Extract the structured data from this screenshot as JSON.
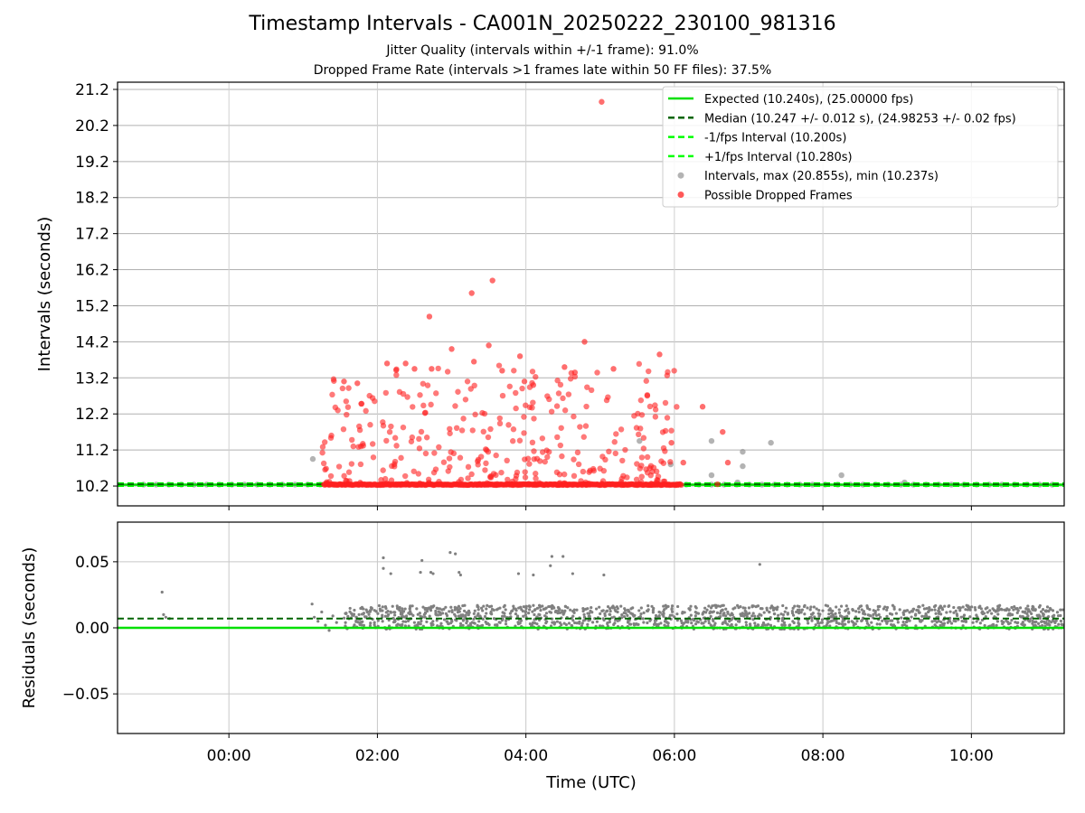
{
  "chart_data": [
    {
      "type": "scatter",
      "title": "Timestamp Intervals - CA001N_20250222_230100_981316",
      "subtitle_lines": [
        "Jitter Quality (intervals within +/-1 frame): 91.0%",
        "Dropped Frame Rate (intervals >1 frames late within 50 FF files): 37.5%"
      ],
      "xlabel": "",
      "ylabel": "Intervals (seconds)",
      "xlim_hours": [
        -1.5,
        11.25
      ],
      "ylim": [
        9.65,
        21.4
      ],
      "yticks": [
        10.2,
        11.2,
        12.2,
        13.2,
        14.2,
        15.2,
        16.2,
        17.2,
        18.2,
        19.2,
        20.2,
        21.2
      ],
      "ytick_labels": [
        "10.2",
        "11.2",
        "12.2",
        "13.2",
        "14.2",
        "15.2",
        "16.2",
        "17.2",
        "18.2",
        "19.2",
        "20.2",
        "21.2"
      ],
      "grid": true,
      "legend_position": "top-right",
      "legend": [
        {
          "label": "Expected (10.240s), (25.00000 fps)",
          "style": "solid-line",
          "color": "#00e000"
        },
        {
          "label": "Median (10.247 +/- 0.012 s), (24.98253 +/- 0.02 fps)",
          "style": "dashed-line",
          "color": "#006400"
        },
        {
          "label": "-1/fps Interval (10.200s)",
          "style": "dashed-line",
          "color": "#00ff00"
        },
        {
          "label": "+1/fps Interval (10.280s)",
          "style": "dashed-line",
          "color": "#00ff00"
        },
        {
          "label": "Intervals, max (20.855s), min (10.237s)",
          "style": "point",
          "color": "#9a9a9a"
        },
        {
          "label": "Possible Dropped Frames",
          "style": "point",
          "color": "#ff2020"
        }
      ],
      "reference_lines": {
        "expected": 10.24,
        "median": 10.247,
        "minus_1_fps": 10.2,
        "plus_1_fps": 10.28
      },
      "series": [
        {
          "name": "Intervals, max (20.855s), min (10.237s)",
          "color": "#9a9a9a",
          "baseline_value": 10.24,
          "baseline_x_range_hours": [
            -1.15,
            11.25
          ],
          "baseline_x_step_hours": 0.17,
          "outliers": [
            {
              "x_hours": 1.13,
              "y": 10.95
            },
            {
              "x_hours": 5.53,
              "y": 11.45
            },
            {
              "x_hours": 5.95,
              "y": 10.8
            },
            {
              "x_hours": 6.5,
              "y": 11.45
            },
            {
              "x_hours": 6.5,
              "y": 10.5
            },
            {
              "x_hours": 6.92,
              "y": 11.15
            },
            {
              "x_hours": 6.92,
              "y": 10.75
            },
            {
              "x_hours": 7.3,
              "y": 11.4
            },
            {
              "x_hours": 6.85,
              "y": 10.3
            },
            {
              "x_hours": 8.25,
              "y": 10.5
            },
            {
              "x_hours": 9.1,
              "y": 10.3
            }
          ]
        },
        {
          "name": "Possible Dropped Frames",
          "color": "#ff2020",
          "baseline_value": 10.24,
          "baseline_x_range_hours": [
            1.28,
            6.1
          ],
          "cluster_x_range_hours": [
            1.25,
            6.05
          ],
          "cluster_y_range": [
            10.25,
            13.6
          ],
          "cluster_count": 340,
          "points": [
            {
              "x_hours": 5.02,
              "y": 20.855
            },
            {
              "x_hours": 3.55,
              "y": 15.9
            },
            {
              "x_hours": 3.27,
              "y": 15.55
            },
            {
              "x_hours": 2.7,
              "y": 14.9
            },
            {
              "x_hours": 4.79,
              "y": 14.2
            },
            {
              "x_hours": 3.5,
              "y": 14.1
            },
            {
              "x_hours": 3.0,
              "y": 14.0
            },
            {
              "x_hours": 5.8,
              "y": 13.85
            },
            {
              "x_hours": 3.92,
              "y": 13.8
            },
            {
              "x_hours": 3.3,
              "y": 13.65
            },
            {
              "x_hours": 2.13,
              "y": 13.6
            },
            {
              "x_hours": 2.38,
              "y": 13.6
            },
            {
              "x_hours": 4.52,
              "y": 13.5
            },
            {
              "x_hours": 2.5,
              "y": 13.45
            },
            {
              "x_hours": 5.18,
              "y": 13.45
            },
            {
              "x_hours": 2.73,
              "y": 13.45
            },
            {
              "x_hours": 3.68,
              "y": 13.4
            },
            {
              "x_hours": 4.66,
              "y": 13.35
            },
            {
              "x_hours": 1.55,
              "y": 13.1
            },
            {
              "x_hours": 1.73,
              "y": 13.05
            },
            {
              "x_hours": 3.98,
              "y": 13.1
            },
            {
              "x_hours": 4.1,
              "y": 13.0
            },
            {
              "x_hours": 6.38,
              "y": 12.4
            },
            {
              "x_hours": 6.65,
              "y": 11.7
            },
            {
              "x_hours": 6.72,
              "y": 10.85
            },
            {
              "x_hours": 6.12,
              "y": 10.85
            },
            {
              "x_hours": 6.58,
              "y": 10.25
            },
            {
              "x_hours": 5.96,
              "y": 11.4
            }
          ]
        }
      ]
    },
    {
      "type": "scatter",
      "xlabel": "Time (UTC)",
      "ylabel": "Residuals (seconds)",
      "xlim_hours": [
        -1.5,
        11.25
      ],
      "ylim": [
        -0.08,
        0.08
      ],
      "yticks": [
        -0.05,
        0.0,
        0.05
      ],
      "ytick_labels": [
        "−0.05",
        "0.00",
        "0.05"
      ],
      "xticks_hours": [
        0,
        2,
        4,
        6,
        8,
        10
      ],
      "xtick_labels": [
        "00:00",
        "02:00",
        "04:00",
        "06:00",
        "08:00",
        "10:00"
      ],
      "grid": true,
      "reference_lines": {
        "zero": 0.0,
        "median_offset": 0.007
      },
      "series": [
        {
          "name": "",
          "color": "#808080",
          "band_x_range_hours": [
            1.55,
            11.25
          ],
          "band_y_range": [
            -0.001,
            0.017
          ],
          "band_count": 1500,
          "early_points": [
            {
              "x_hours": -0.9,
              "y": 0.027
            },
            {
              "x_hours": -0.88,
              "y": 0.01
            },
            {
              "x_hours": -0.85,
              "y": 0.008
            },
            {
              "x_hours": -0.8,
              "y": 0.007
            },
            {
              "x_hours": 1.12,
              "y": 0.018
            },
            {
              "x_hours": 1.15,
              "y": 0.008
            },
            {
              "x_hours": 1.2,
              "y": 0.005
            },
            {
              "x_hours": 1.25,
              "y": 0.012
            },
            {
              "x_hours": 1.3,
              "y": 0.002
            },
            {
              "x_hours": 1.35,
              "y": -0.002
            },
            {
              "x_hours": 1.4,
              "y": 0.009
            },
            {
              "x_hours": 1.45,
              "y": 0.004
            }
          ],
          "outliers": [
            {
              "x_hours": 2.08,
              "y": 0.053
            },
            {
              "x_hours": 2.08,
              "y": 0.045
            },
            {
              "x_hours": 2.18,
              "y": 0.041
            },
            {
              "x_hours": 2.6,
              "y": 0.051
            },
            {
              "x_hours": 2.58,
              "y": 0.042
            },
            {
              "x_hours": 2.75,
              "y": 0.041
            },
            {
              "x_hours": 2.72,
              "y": 0.042
            },
            {
              "x_hours": 2.98,
              "y": 0.057
            },
            {
              "x_hours": 3.05,
              "y": 0.056
            },
            {
              "x_hours": 3.1,
              "y": 0.042
            },
            {
              "x_hours": 3.12,
              "y": 0.04
            },
            {
              "x_hours": 3.9,
              "y": 0.041
            },
            {
              "x_hours": 4.1,
              "y": 0.04
            },
            {
              "x_hours": 4.35,
              "y": 0.054
            },
            {
              "x_hours": 4.33,
              "y": 0.047
            },
            {
              "x_hours": 4.5,
              "y": 0.054
            },
            {
              "x_hours": 4.63,
              "y": 0.041
            },
            {
              "x_hours": 5.05,
              "y": 0.04
            },
            {
              "x_hours": 7.15,
              "y": 0.048
            }
          ]
        }
      ]
    }
  ]
}
